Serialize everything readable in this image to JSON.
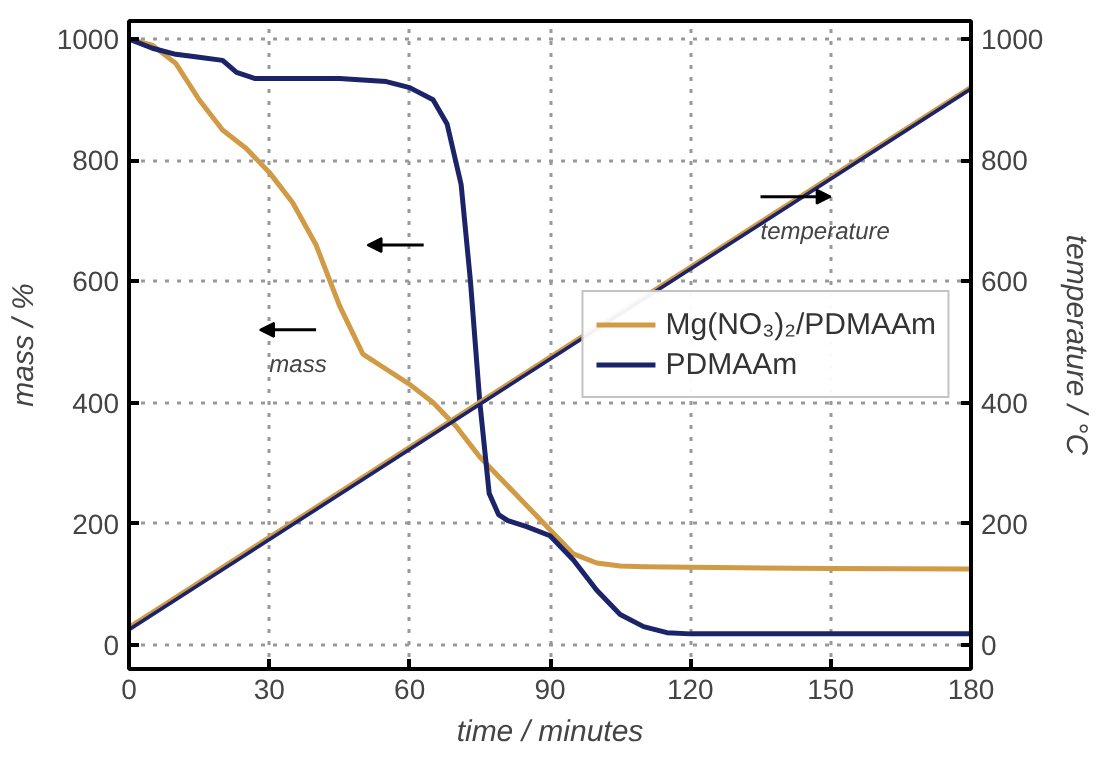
{
  "chart_data": {
    "type": "line",
    "xlabel": "time / minutes",
    "ylabel": "mass / %",
    "y2label": "temperature / °C",
    "xlim": [
      0,
      180
    ],
    "xticks": [
      0,
      30,
      60,
      90,
      120,
      150,
      180
    ],
    "ylim": [
      -40,
      1030
    ],
    "yticks": [
      0,
      200,
      400,
      600,
      800,
      1000
    ],
    "y2lim": [
      -40,
      1030
    ],
    "y2ticks": [
      0,
      200,
      400,
      600,
      800,
      1000
    ],
    "grid": true,
    "legend": "right",
    "line_style": "solid",
    "marker": "none",
    "annotations": [
      "mass",
      "temperature"
    ],
    "series": [
      {
        "name": "Mg(NO₃)₂/PDMAAm",
        "color": "#d19a45",
        "x": [
          0,
          5,
          10,
          15,
          20,
          25,
          30,
          35,
          40,
          45,
          50,
          55,
          60,
          65,
          70,
          75,
          80,
          85,
          90,
          95,
          100,
          105,
          110,
          120,
          150,
          180
        ],
        "values": [
          1000,
          990,
          960,
          900,
          850,
          820,
          780,
          730,
          660,
          560,
          480,
          455,
          430,
          400,
          360,
          310,
          270,
          230,
          190,
          150,
          135,
          130,
          129,
          128,
          126,
          125
        ]
      },
      {
        "name": "PDMAAm",
        "color": "#1b2468",
        "x": [
          0,
          5,
          10,
          15,
          20,
          23,
          27,
          35,
          45,
          55,
          60,
          65,
          68,
          71,
          73,
          75,
          77,
          79,
          81,
          85,
          90,
          95,
          100,
          105,
          110,
          115,
          120,
          150,
          180
        ],
        "values": [
          1000,
          985,
          975,
          970,
          965,
          945,
          935,
          935,
          935,
          930,
          920,
          900,
          860,
          760,
          600,
          400,
          250,
          215,
          205,
          195,
          180,
          140,
          90,
          50,
          30,
          20,
          18,
          18,
          18
        ]
      },
      {
        "color": "#d19a45",
        "axis": "y2",
        "x": [
          0,
          180
        ],
        "values": [
          30,
          922
        ]
      },
      {
        "color": "#1b2468",
        "axis": "y2",
        "x": [
          0,
          180
        ],
        "values": [
          25,
          918
        ]
      }
    ]
  }
}
